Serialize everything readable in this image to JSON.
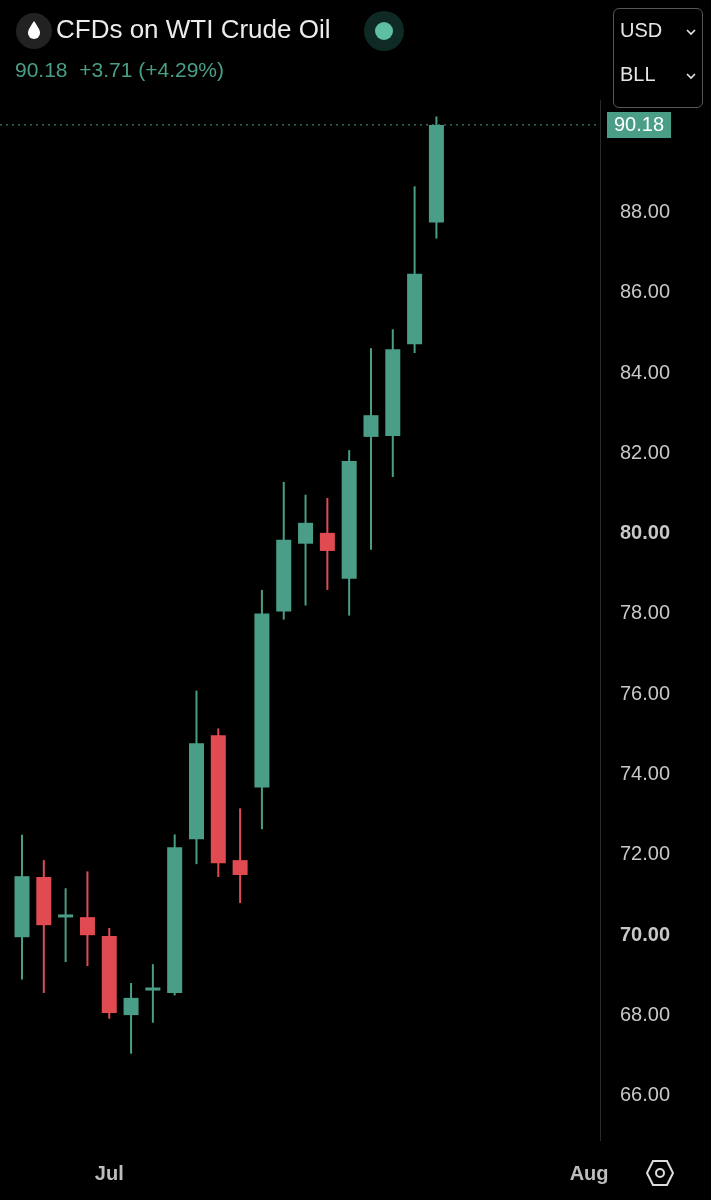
{
  "chart_data": {
    "type": "candlestick",
    "title": "CFDs on WTI Crude Oil",
    "subtitle": "90.18 +3.71 (+4.29%)",
    "annotations": [
      "USD",
      "BLL"
    ],
    "categories": [
      null,
      null,
      null,
      null,
      "Jul",
      null,
      null,
      null,
      null,
      null,
      null,
      null,
      null,
      null,
      null,
      null,
      null,
      null,
      null,
      null,
      null,
      null,
      null,
      null,
      null,
      null,
      "Aug"
    ],
    "ohlc": [
      [
        69.95,
        72.5,
        68.9,
        71.47
      ],
      [
        71.45,
        71.87,
        68.56,
        70.25
      ],
      [
        70.42,
        71.17,
        69.33,
        70.48
      ],
      [
        70.45,
        71.59,
        69.23,
        70.0
      ],
      [
        69.98,
        70.18,
        67.92,
        68.06
      ],
      [
        68.01,
        68.81,
        67.05,
        68.44
      ],
      [
        68.6,
        69.28,
        67.82,
        68.66
      ],
      [
        68.56,
        72.51,
        68.5,
        72.19
      ],
      [
        72.39,
        76.09,
        71.77,
        74.78
      ],
      [
        74.98,
        75.15,
        71.45,
        71.79
      ],
      [
        71.87,
        73.16,
        70.8,
        71.5
      ],
      [
        73.68,
        78.6,
        72.64,
        78.01
      ],
      [
        78.06,
        81.29,
        77.86,
        79.85
      ],
      [
        79.75,
        80.97,
        78.21,
        80.27
      ],
      [
        80.02,
        80.89,
        78.6,
        79.57
      ],
      [
        78.88,
        82.08,
        77.96,
        81.81
      ],
      [
        82.41,
        84.62,
        79.6,
        82.95
      ],
      [
        82.43,
        85.09,
        81.41,
        84.59
      ],
      [
        84.72,
        88.65,
        84.5,
        86.47
      ],
      [
        87.75,
        90.39,
        87.35,
        90.18
      ],
      null,
      null,
      null,
      null,
      null,
      null,
      null
    ],
    "colors": [
      "#4a9e87",
      "#e04b52",
      "#4a9e87",
      "#e04b52",
      "#e04b52",
      "#4a9e87",
      "#4a9e87",
      "#4a9e87",
      "#4a9e87",
      "#e04b52",
      "#e04b52",
      "#4a9e87",
      "#4a9e87",
      "#4a9e87",
      "#e04b52",
      "#4a9e87",
      "#4a9e87",
      "#4a9e87",
      "#4a9e87",
      "#4a9e87",
      null,
      null,
      null,
      null,
      null,
      null,
      null
    ],
    "ylim": [
      64.9,
      90.8
    ],
    "yticks": [
      {
        "value": 66,
        "label": "66.00"
      },
      {
        "value": 68,
        "label": "68.00"
      },
      {
        "value": 70,
        "label": "70.00"
      },
      {
        "value": 72,
        "label": "72.00"
      },
      {
        "value": 74,
        "label": "74.00"
      },
      {
        "value": 76,
        "label": "76.00"
      },
      {
        "value": 78,
        "label": "78.00"
      },
      {
        "value": 80,
        "label": "80.00"
      },
      {
        "value": 82,
        "label": "82.00"
      },
      {
        "value": 84,
        "label": "84.00"
      },
      {
        "value": 86,
        "label": "86.00"
      },
      {
        "value": 88,
        "label": "88.00"
      }
    ],
    "ref_lines": [
      {
        "axis": "y",
        "value": 90.18,
        "label": "90.18",
        "color": "#4a9e87",
        "line_style": "dotted"
      }
    ]
  }
}
